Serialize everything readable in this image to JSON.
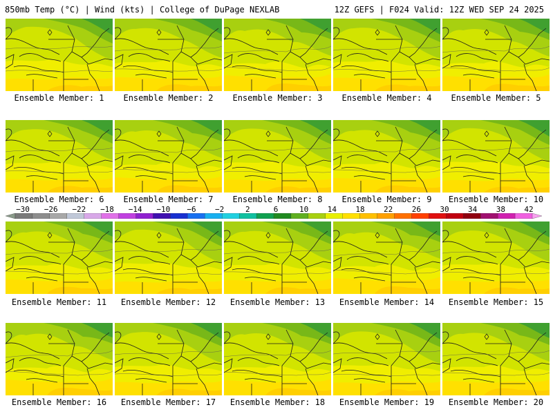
{
  "header": {
    "title_left": "850mb Temp (°C) | Wind (kts) | College of DuPage NEXLAB",
    "title_right": "12Z GEFS | F024 Valid: 12Z WED SEP 24 2025"
  },
  "panels": [
    {
      "label": "Ensemble Member: 1"
    },
    {
      "label": "Ensemble Member: 2"
    },
    {
      "label": "Ensemble Member: 3"
    },
    {
      "label": "Ensemble Member: 4"
    },
    {
      "label": "Ensemble Member: 5"
    },
    {
      "label": "Ensemble Member: 6"
    },
    {
      "label": "Ensemble Member: 7"
    },
    {
      "label": "Ensemble Member: 8"
    },
    {
      "label": "Ensemble Member: 9"
    },
    {
      "label": "Ensemble Member: 10"
    },
    {
      "label": "Ensemble Member: 11"
    },
    {
      "label": "Ensemble Member: 12"
    },
    {
      "label": "Ensemble Member: 13"
    },
    {
      "label": "Ensemble Member: 14"
    },
    {
      "label": "Ensemble Member: 15"
    },
    {
      "label": "Ensemble Member: 16"
    },
    {
      "label": "Ensemble Member: 17"
    },
    {
      "label": "Ensemble Member: 18"
    },
    {
      "label": "Ensemble Member: 19"
    },
    {
      "label": "Ensemble Member: 20"
    }
  ],
  "colorbar": {
    "ticks": [
      "−30",
      "−26",
      "−22",
      "−18",
      "−14",
      "−10",
      "−6",
      "−2",
      "2",
      "6",
      "10",
      "14",
      "18",
      "22",
      "26",
      "30",
      "34",
      "38",
      "42"
    ],
    "colors": [
      "#8a9a8a",
      "#7a7a7a",
      "#8e8e8e",
      "#a8a8a8",
      "#c0c8d8",
      "#d8a8e8",
      "#e070e8",
      "#c040e0",
      "#9020d0",
      "#4010b0",
      "#1830d0",
      "#1870f0",
      "#18b0f0",
      "#20d0e0",
      "#10c0a0",
      "#10a050",
      "#208a20",
      "#60b020",
      "#a8d010",
      "#e8f000",
      "#ffe000",
      "#ffc000",
      "#ffa000",
      "#ff7000",
      "#ff4000",
      "#e01010",
      "#c00010",
      "#900010",
      "#a01070",
      "#d020b0",
      "#f060e0",
      "#f8a0f0"
    ]
  }
}
